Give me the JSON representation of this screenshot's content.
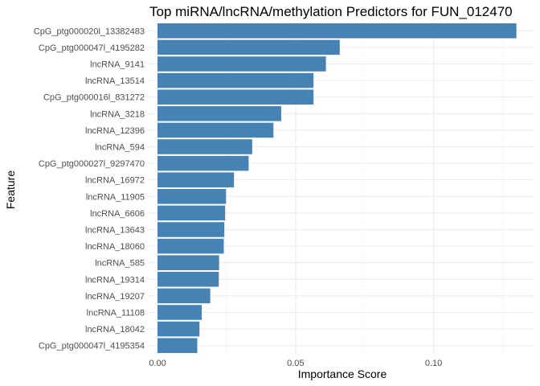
{
  "chart_data": {
    "type": "bar",
    "orientation": "horizontal",
    "title": "Top miRNA/lncRNA/methylation Predictors for FUN_012470",
    "xlabel": "Importance Score",
    "ylabel": "Feature",
    "xlim": [
      -0.0035,
      0.1365
    ],
    "x_ticks": [
      0.0,
      0.05,
      0.1
    ],
    "x_tick_labels": [
      "0.00",
      "0.05",
      "0.10"
    ],
    "grid": true,
    "bar_color": "#4682b4",
    "categories": [
      "CpG_ptg000020l_13382483",
      "CpG_ptg000047l_4195282",
      "lncRNA_9141",
      "lncRNA_13514",
      "CpG_ptg000016l_831272",
      "lncRNA_3218",
      "lncRNA_12396",
      "lncRNA_594",
      "CpG_ptg000027l_9297470",
      "lncRNA_16972",
      "lncRNA_11905",
      "lncRNA_6606",
      "lncRNA_13643",
      "lncRNA_18060",
      "lncRNA_585",
      "lncRNA_19314",
      "lncRNA_19207",
      "lncRNA_11108",
      "lncRNA_18042",
      "CpG_ptg000047l_4195354"
    ],
    "values": [
      0.13,
      0.066,
      0.061,
      0.0565,
      0.0565,
      0.0448,
      0.042,
      0.0343,
      0.033,
      0.0277,
      0.0248,
      0.0245,
      0.0242,
      0.024,
      0.0223,
      0.0222,
      0.0191,
      0.016,
      0.0152,
      0.0144
    ]
  }
}
